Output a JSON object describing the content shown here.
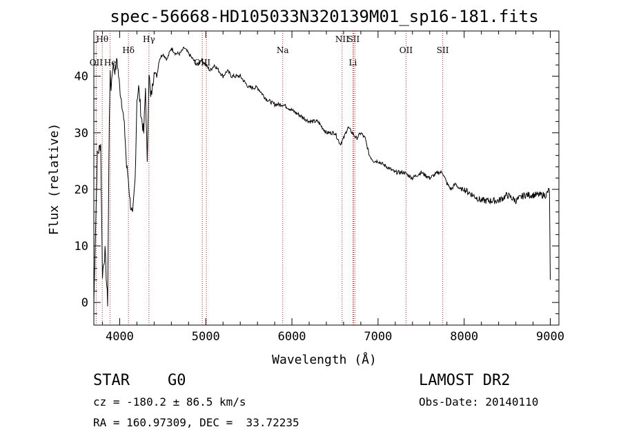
{
  "chart_data": {
    "type": "line",
    "title": "spec-56668-HD105033N320139M01_sp16-181.fits",
    "xlabel": "Wavelength (Å)",
    "ylabel": "Flux (relative)",
    "xlim": [
      3700,
      9100
    ],
    "ylim": [
      -4,
      48
    ],
    "xticks": [
      4000,
      5000,
      6000,
      7000,
      8000,
      9000
    ],
    "yticks": [
      0,
      10,
      20,
      30,
      40
    ],
    "grid": false,
    "line_color": "#000000",
    "marker_color": "#b22222",
    "spectral_lines": [
      {
        "name": "Hθ",
        "x": 3798,
        "row": "top"
      },
      {
        "name": "OII",
        "x": 3727,
        "row": "mid"
      },
      {
        "name": "He",
        "x": 3889,
        "row": "mid"
      },
      {
        "name": "Hδ",
        "x": 4102,
        "row": "upper"
      },
      {
        "name": "Hγ",
        "x": 4340,
        "row": "top"
      },
      {
        "name": "OIII",
        "x": 4959,
        "row": "mid"
      },
      {
        "name": "OIII",
        "x": 5007,
        "row": "mid-hidden"
      },
      {
        "name": "Na",
        "x": 5893,
        "row": "upper"
      },
      {
        "name": "NII",
        "x": 6583,
        "row": "top"
      },
      {
        "name": "SII",
        "x": 6716,
        "row": "top"
      },
      {
        "name": "Li",
        "x": 6708,
        "row": "mid"
      },
      {
        "name": "SII",
        "x": 6731,
        "row": "top-hidden"
      },
      {
        "name": "OII",
        "x": 7325,
        "row": "upper"
      },
      {
        "name": "SII",
        "x": 7751,
        "row": "upper"
      }
    ],
    "series": [
      {
        "x": [
          3700,
          3740,
          3780,
          3800,
          3830,
          3850,
          3860,
          3870,
          3880,
          3890,
          3900,
          3920,
          3950,
          3970,
          4000,
          4030,
          4060,
          4080,
          4100,
          4120,
          4150,
          4180,
          4200,
          4220,
          4250,
          4280,
          4300,
          4320,
          4340,
          4360,
          4380,
          4400,
          4430,
          4460,
          4500,
          4550,
          4600,
          4650,
          4700,
          4750,
          4800,
          4850,
          4900,
          4950,
          5000,
          5050,
          5100,
          5150,
          5200,
          5250,
          5300,
          5400,
          5500,
          5600,
          5700,
          5800,
          5900,
          6000,
          6100,
          6200,
          6300,
          6400,
          6500,
          6560,
          6600,
          6650,
          6700,
          6750,
          6800,
          6850,
          6900,
          6950,
          7000,
          7100,
          7200,
          7300,
          7400,
          7500,
          7600,
          7700,
          7750,
          7800,
          7850,
          7900,
          7950,
          8000,
          8100,
          8200,
          8300,
          8400,
          8500,
          8600,
          8700,
          8800,
          8900,
          8950,
          8990,
          9000
        ],
        "values": [
          0,
          26,
          28,
          5,
          9,
          3,
          0,
          16,
          33,
          40,
          38,
          42,
          41,
          43,
          38,
          35,
          30,
          24,
          22,
          18,
          15,
          22,
          36,
          38,
          33,
          30,
          38,
          24,
          41,
          36,
          38,
          41,
          40,
          43,
          44,
          43,
          45,
          44,
          44,
          45,
          44,
          43,
          42,
          43,
          42,
          41,
          42,
          41,
          40,
          41,
          40,
          40,
          38,
          38,
          36,
          35,
          35,
          34,
          33,
          32,
          32,
          30,
          30,
          28,
          29,
          31,
          30,
          29,
          30,
          29,
          26,
          25,
          25,
          24,
          23,
          23,
          22,
          23,
          22,
          23,
          23,
          21,
          20,
          21,
          20,
          20,
          19,
          18,
          18,
          18,
          19,
          18,
          19,
          19,
          19,
          19,
          20,
          4
        ]
      }
    ]
  },
  "info": {
    "object_class": "STAR",
    "subclass": "G0",
    "survey": "LAMOST DR2",
    "redshift": "cz = -180.2 ± 86.5 km/s",
    "obs_date": "Obs-Date: 20140110",
    "coords": "RA = 160.97309, DEC =  33.72235"
  }
}
